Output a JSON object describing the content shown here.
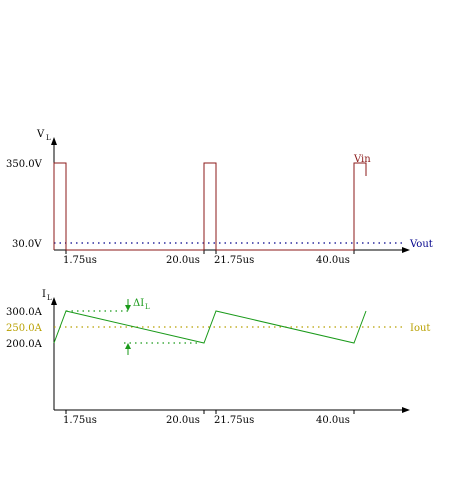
{
  "top": {
    "y_axis_label": "V",
    "y_axis_sub": "L",
    "y_ticks": [
      "350.0V",
      "30.0V"
    ],
    "x_ticks": [
      "1.75us",
      "20.0us",
      "21.75us",
      "40.0us"
    ],
    "vin_label": "Vin",
    "vout_label": "Vout",
    "vin_color": "#8b1a1a",
    "vout_color": "#00008b"
  },
  "bottom": {
    "y_axis_label": "I",
    "y_axis_sub": "L",
    "y_ticks": [
      "300.0A",
      "250.0A",
      "200.0A"
    ],
    "x_ticks": [
      "1.75us",
      "20.0us",
      "21.75us",
      "40.0us"
    ],
    "delta_label": "ΔI",
    "delta_sub": "L",
    "iout_label": "Iout",
    "current_color": "#1a9a1a",
    "iout_color": "#b8a000"
  }
}
